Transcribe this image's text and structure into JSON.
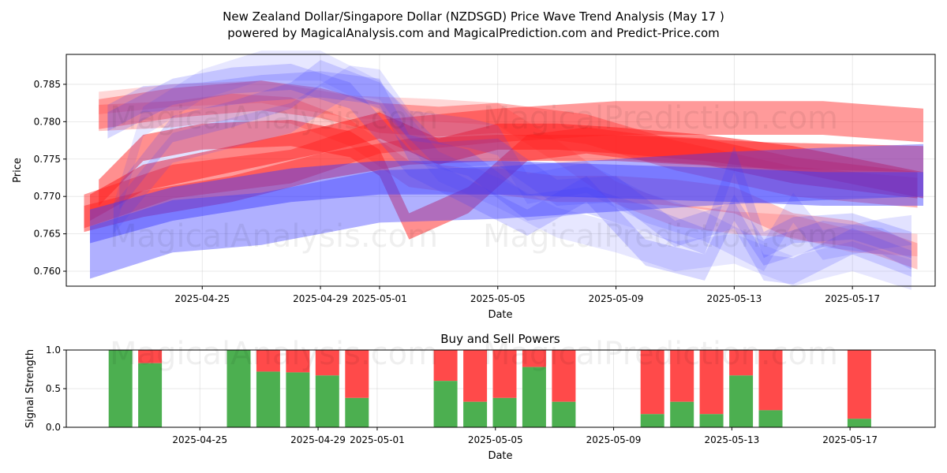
{
  "header": {
    "title_line1": "New Zealand Dollar/Singapore Dollar (NZDSGD) Price Wave Trend Analysis (May 17 )",
    "title_line2": "powered by MagicalAnalysis.com and MagicalPrediction.com and Predict-Price.com"
  },
  "watermarks": {
    "analysis": "MagicalAnalysis.com",
    "prediction": "MagicalPrediction.com"
  },
  "colors": {
    "red_band": "#ff2020",
    "blue_band": "#3a3aff",
    "buy": "#4caf50",
    "sell": "#ff4a4a"
  },
  "chart_data": [
    {
      "type": "area",
      "title": "",
      "xlabel": "Date",
      "ylabel": "Price",
      "x_start": "2025-04-21",
      "x_end": "2025-05-19",
      "xlim_days": [
        -0.6,
        28.8
      ],
      "ylim": [
        0.758,
        0.789
      ],
      "x_ticks": [
        {
          "day": 4,
          "label": "2025-04-25"
        },
        {
          "day": 8,
          "label": "2025-04-29"
        },
        {
          "day": 10,
          "label": "2025-05-01"
        },
        {
          "day": 14,
          "label": "2025-05-05"
        },
        {
          "day": 18,
          "label": "2025-05-09"
        },
        {
          "day": 22,
          "label": "2025-05-13"
        },
        {
          "day": 26,
          "label": "2025-05-17"
        }
      ],
      "y_ticks": [
        0.76,
        0.765,
        0.77,
        0.775,
        0.78,
        0.785
      ],
      "grid": true,
      "series": [
        {
          "name": "red wave 1",
          "color": "red",
          "opacity": 0.45,
          "width": 0.0045,
          "x": [
            0,
            3,
            7,
            10,
            14,
            18,
            22,
            25,
            28.4
          ],
          "y": [
            0.768,
            0.772,
            0.774,
            0.778,
            0.7795,
            0.7805,
            0.7805,
            0.7805,
            0.7795
          ]
        },
        {
          "name": "red wave 2",
          "color": "red",
          "opacity": 0.5,
          "width": 0.0035,
          "x": [
            0,
            2,
            5,
            8,
            11,
            14,
            18,
            23,
            28.4
          ],
          "y": [
            0.767,
            0.769,
            0.771,
            0.774,
            0.776,
            0.7765,
            0.7765,
            0.7755,
            0.775
          ]
        },
        {
          "name": "red wave 3",
          "color": "red",
          "opacity": 0.55,
          "width": 0.0035,
          "x": [
            0.2,
            2,
            5,
            8,
            10,
            12,
            14,
            16,
            18,
            21,
            24,
            28.4
          ],
          "y": [
            0.7685,
            0.7725,
            0.775,
            0.7775,
            0.7795,
            0.776,
            0.778,
            0.778,
            0.7775,
            0.7765,
            0.775,
            0.7715
          ]
        },
        {
          "name": "red wave 4",
          "color": "red",
          "opacity": 0.35,
          "width": 0.004,
          "x": [
            0.5,
            3,
            6,
            8,
            10,
            12,
            14,
            17,
            20,
            24,
            28.2
          ],
          "y": [
            0.781,
            0.7825,
            0.7835,
            0.7825,
            0.7805,
            0.78,
            0.7805,
            0.779,
            0.7755,
            0.772,
            0.7705
          ]
        },
        {
          "name": "red wave 5",
          "color": "red",
          "opacity": 0.5,
          "width": 0.0035,
          "x": [
            0.5,
            2,
            4,
            7,
            9,
            10,
            11,
            13,
            15,
            17,
            19,
            21,
            24,
            28.2
          ],
          "y": [
            0.7705,
            0.7765,
            0.778,
            0.7785,
            0.777,
            0.7745,
            0.766,
            0.7695,
            0.7765,
            0.7775,
            0.7765,
            0.776,
            0.7735,
            0.7715
          ]
        },
        {
          "name": "red wave 6",
          "color": "red",
          "opacity": 0.25,
          "width": 0.0035,
          "x": [
            0.5,
            3,
            5,
            7,
            9,
            11,
            13,
            14,
            16,
            18,
            20,
            22,
            24,
            26,
            28.2
          ],
          "y": [
            0.7805,
            0.781,
            0.782,
            0.7815,
            0.7785,
            0.773,
            0.772,
            0.772,
            0.771,
            0.771,
            0.7705,
            0.7695,
            0.766,
            0.765,
            0.762
          ]
        },
        {
          "name": "red wave 7",
          "color": "red",
          "opacity": 0.18,
          "width": 0.003,
          "x": [
            0.5,
            3,
            6,
            9,
            12,
            14,
            16,
            18,
            20,
            22,
            24,
            26,
            28.2
          ],
          "y": [
            0.7825,
            0.7835,
            0.784,
            0.782,
            0.7815,
            0.781,
            0.776,
            0.7705,
            0.7675,
            0.7665,
            0.766,
            0.764,
            0.7635
          ]
        },
        {
          "name": "blue wave 1",
          "color": "blue",
          "opacity": 0.4,
          "width": 0.007,
          "x": [
            0.2,
            3,
            6,
            10,
            14,
            18,
            22,
            25,
            28.4
          ],
          "y": [
            0.7625,
            0.766,
            0.767,
            0.77,
            0.7705,
            0.7715,
            0.7725,
            0.773,
            0.7735
          ]
        },
        {
          "name": "blue wave 2",
          "color": "blue",
          "opacity": 0.45,
          "width": 0.0045,
          "x": [
            0.2,
            3,
            7,
            10,
            14,
            18,
            22,
            25,
            28.4
          ],
          "y": [
            0.766,
            0.769,
            0.7715,
            0.7725,
            0.7725,
            0.772,
            0.7715,
            0.771,
            0.771
          ]
        },
        {
          "name": "blue wave 3",
          "color": "blue",
          "opacity": 0.2,
          "width": 0.0035,
          "x": [
            0.8,
            3,
            5,
            7,
            9,
            11,
            13,
            15,
            17,
            19,
            21,
            22,
            23,
            25,
            27,
            28
          ],
          "y": [
            0.7795,
            0.784,
            0.7855,
            0.786,
            0.7835,
            0.7745,
            0.7705,
            0.7665,
            0.771,
            0.7625,
            0.7605,
            0.7685,
            0.7625,
            0.765,
            0.764,
            0.762
          ]
        },
        {
          "name": "blue wave 4",
          "color": "blue",
          "opacity": 0.2,
          "width": 0.0035,
          "x": [
            0.8,
            2,
            4,
            6,
            8,
            10,
            11,
            13,
            15,
            17,
            19,
            21,
            22,
            23,
            24,
            26,
            28
          ],
          "y": [
            0.7805,
            0.783,
            0.7835,
            0.7845,
            0.785,
            0.784,
            0.7765,
            0.7745,
            0.7685,
            0.7695,
            0.767,
            0.764,
            0.775,
            0.7635,
            0.7655,
            0.766,
            0.7635
          ]
        },
        {
          "name": "blue wave 5",
          "color": "blue",
          "opacity": 0.18,
          "width": 0.0035,
          "x": [
            1.2,
            3,
            5,
            7,
            8,
            10,
            12,
            14,
            16,
            18,
            20,
            22,
            23,
            24,
            26,
            28
          ],
          "y": [
            0.77,
            0.779,
            0.781,
            0.7835,
            0.7865,
            0.7835,
            0.7755,
            0.776,
            0.7705,
            0.771,
            0.765,
            0.7675,
            0.7605,
            0.76,
            0.764,
            0.761
          ]
        },
        {
          "name": "blue wave 6",
          "color": "blue",
          "opacity": 0.15,
          "width": 0.004,
          "x": [
            1,
            3,
            5,
            7,
            9,
            10,
            11,
            13,
            14,
            15,
            17,
            19,
            21,
            23,
            24,
            25,
            27,
            28
          ],
          "y": [
            0.767,
            0.7765,
            0.7785,
            0.7805,
            0.7855,
            0.785,
            0.7795,
            0.7785,
            0.7775,
            0.771,
            0.7725,
            0.7685,
            0.766,
            0.762,
            0.7685,
            0.7635,
            0.765,
            0.7655
          ]
        },
        {
          "name": "blue wave 7",
          "color": "blue",
          "opacity": 0.12,
          "width": 0.004,
          "x": [
            1,
            2,
            4,
            6,
            8,
            10,
            12,
            14,
            16,
            18,
            20,
            22,
            24,
            26,
            28
          ],
          "y": [
            0.767,
            0.78,
            0.785,
            0.7875,
            0.7875,
            0.7835,
            0.774,
            0.7705,
            0.7665,
            0.7645,
            0.762,
            0.763,
            0.76,
            0.762,
            0.7595
          ]
        }
      ]
    },
    {
      "type": "bar",
      "title": "Buy and Sell Powers",
      "xlabel": "Date",
      "ylabel": "Signal Strength",
      "xlim_days": [
        -0.6,
        28.8
      ],
      "ylim": [
        0,
        1
      ],
      "y_ticks": [
        {
          "value": 0,
          "label": "0.0"
        },
        {
          "value": 0.5,
          "label": "0.5"
        },
        {
          "value": 1,
          "label": "1.0"
        }
      ],
      "x_ticks": [
        {
          "day": 4,
          "label": "2025-04-25"
        },
        {
          "day": 8,
          "label": "2025-04-29"
        },
        {
          "day": 10,
          "label": "2025-05-01"
        },
        {
          "day": 14,
          "label": "2025-05-05"
        },
        {
          "day": 18,
          "label": "2025-05-09"
        },
        {
          "day": 22,
          "label": "2025-05-13"
        },
        {
          "day": 26,
          "label": "2025-05-17"
        }
      ],
      "bars": [
        {
          "day": 1,
          "buy": 1.0
        },
        {
          "day": 2,
          "buy": 0.83
        },
        {
          "day": 5,
          "buy": 1.0
        },
        {
          "day": 6,
          "buy": 0.72
        },
        {
          "day": 7,
          "buy": 0.71
        },
        {
          "day": 8,
          "buy": 0.67
        },
        {
          "day": 9,
          "buy": 0.38
        },
        {
          "day": 12,
          "buy": 0.6
        },
        {
          "day": 13,
          "buy": 0.33
        },
        {
          "day": 14,
          "buy": 0.38
        },
        {
          "day": 15,
          "buy": 0.78
        },
        {
          "day": 16,
          "buy": 0.33
        },
        {
          "day": 19,
          "buy": 0.17
        },
        {
          "day": 20,
          "buy": 0.33
        },
        {
          "day": 21,
          "buy": 0.17
        },
        {
          "day": 22,
          "buy": 0.67
        },
        {
          "day": 23,
          "buy": 0.22
        },
        {
          "day": 26,
          "buy": 0.11
        }
      ]
    }
  ]
}
